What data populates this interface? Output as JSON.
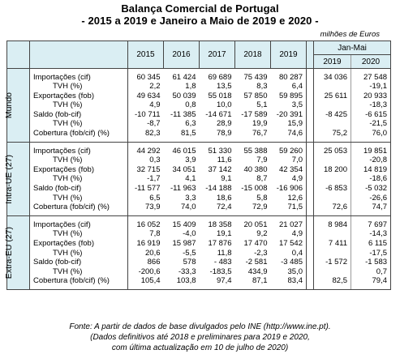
{
  "title": {
    "line1": "Balança Comercial de Portugal",
    "line2": "- 2015 a 2019 e Janeiro a Maio de 2019 e 2020 -"
  },
  "unit": "milhões de Euros",
  "header": {
    "years": [
      "2015",
      "2016",
      "2017",
      "2018",
      "2019"
    ],
    "period": "Jan-Mai",
    "period_years": [
      "2019",
      "2020"
    ]
  },
  "sections": [
    {
      "label": "Mundo",
      "rows": [
        {
          "label": "Importações (cif)",
          "indent": false,
          "values": [
            "60 345",
            "61 424",
            "69 689",
            "75 439",
            "80 287",
            "34 036",
            "27 548"
          ]
        },
        {
          "label": "TVH (%)",
          "indent": true,
          "values": [
            "2,2",
            "1,8",
            "13,5",
            "8,3",
            "6,4",
            "",
            "-19,1"
          ]
        },
        {
          "label": "Exportações (fob)",
          "indent": false,
          "values": [
            "49 634",
            "50 039",
            "55 018",
            "57 850",
            "59 895",
            "25 611",
            "20 933"
          ]
        },
        {
          "label": "TVH (%)",
          "indent": true,
          "values": [
            "4,9",
            "0,8",
            "10,0",
            "5,1",
            "3,5",
            "",
            "-18,3"
          ]
        },
        {
          "label": "Saldo (fob-cif)",
          "indent": false,
          "values": [
            "-10 711",
            "-11 385",
            "-14 671",
            "-17 589",
            "-20 391",
            "-8 425",
            "-6 615"
          ]
        },
        {
          "label": "TVH (%)",
          "indent": true,
          "values": [
            "-8,7",
            "6,3",
            "28,9",
            "19,9",
            "15,9",
            "",
            "-21,5"
          ]
        },
        {
          "label": "Cobertura (fob/cif) (%)",
          "indent": false,
          "values": [
            "82,3",
            "81,5",
            "78,9",
            "76,7",
            "74,6",
            "75,2",
            "76,0"
          ]
        }
      ]
    },
    {
      "label": "Intra-UE (27)",
      "rows": [
        {
          "label": "Importações (cif)",
          "indent": false,
          "values": [
            "44 292",
            "46 015",
            "51 330",
            "55 388",
            "59 260",
            "25 053",
            "19 851"
          ]
        },
        {
          "label": "TVH (%)",
          "indent": true,
          "values": [
            "0,3",
            "3,9",
            "11,6",
            "7,9",
            "7,0",
            "",
            "-20,8"
          ]
        },
        {
          "label": "Exportações (fob)",
          "indent": false,
          "values": [
            "32 715",
            "34 051",
            "37 142",
            "40 380",
            "42 354",
            "18 200",
            "14 819"
          ]
        },
        {
          "label": "TVH (%)",
          "indent": true,
          "values": [
            "-1,7",
            "4,1",
            "9,1",
            "8,7",
            "4,9",
            "",
            "-18,6"
          ]
        },
        {
          "label": "Saldo (fob-cif)",
          "indent": false,
          "values": [
            "-11 577",
            "-11 963",
            "-14 188",
            "-15 008",
            "-16 906",
            "-6 853",
            "-5 032"
          ]
        },
        {
          "label": "TVH (%)",
          "indent": true,
          "values": [
            "6,5",
            "3,3",
            "18,6",
            "5,8",
            "12,6",
            "",
            "-26,6"
          ]
        },
        {
          "label": "Cobertura (fob/cif) (%)",
          "indent": false,
          "values": [
            "73,9",
            "74,0",
            "72,4",
            "72,9",
            "71,5",
            "72,6",
            "74,7"
          ]
        }
      ]
    },
    {
      "label": "Extra-EU (27)",
      "rows": [
        {
          "label": "Importações (cif)",
          "indent": false,
          "values": [
            "16 052",
            "15 409",
            "18 358",
            "20 051",
            "21 027",
            "8 984",
            "7 697"
          ]
        },
        {
          "label": "TVH (%)",
          "indent": true,
          "values": [
            "7,8",
            "-4,0",
            "19,1",
            "9,2",
            "4,9",
            "",
            "-14,3"
          ]
        },
        {
          "label": "Exportações (fob)",
          "indent": false,
          "values": [
            "16 919",
            "15 987",
            "17 876",
            "17 470",
            "17 542",
            "7 411",
            "6 115"
          ]
        },
        {
          "label": "TVH (%)",
          "indent": true,
          "values": [
            "20,6",
            "-5,5",
            "11,8",
            "-2,3",
            "0,4",
            "",
            "-17,5"
          ]
        },
        {
          "label": "Saldo (fob-cif)",
          "indent": false,
          "values": [
            "866",
            "578",
            "- 483",
            "-2 581",
            "-3 485",
            "-1 572",
            "-1 583"
          ]
        },
        {
          "label": "TVH (%)",
          "indent": true,
          "values": [
            "-200,6",
            "-33,3",
            "-183,5",
            "434,9",
            "35,0",
            "",
            "0,7"
          ]
        },
        {
          "label": "Cobertura (fob/cif) (%)",
          "indent": false,
          "values": [
            "105,4",
            "103,8",
            "97,4",
            "87,1",
            "83,4",
            "82,5",
            "79,4"
          ]
        }
      ]
    }
  ],
  "footer": {
    "line1": "Fonte: A partir de dados de base divulgados pelo INE (http://www.ine.pt).",
    "line2": "(Dados definitivos até 2018 e preliminares para 2019 e 2020,",
    "line3": "com última actualização em 10 de julho de 2020)"
  }
}
